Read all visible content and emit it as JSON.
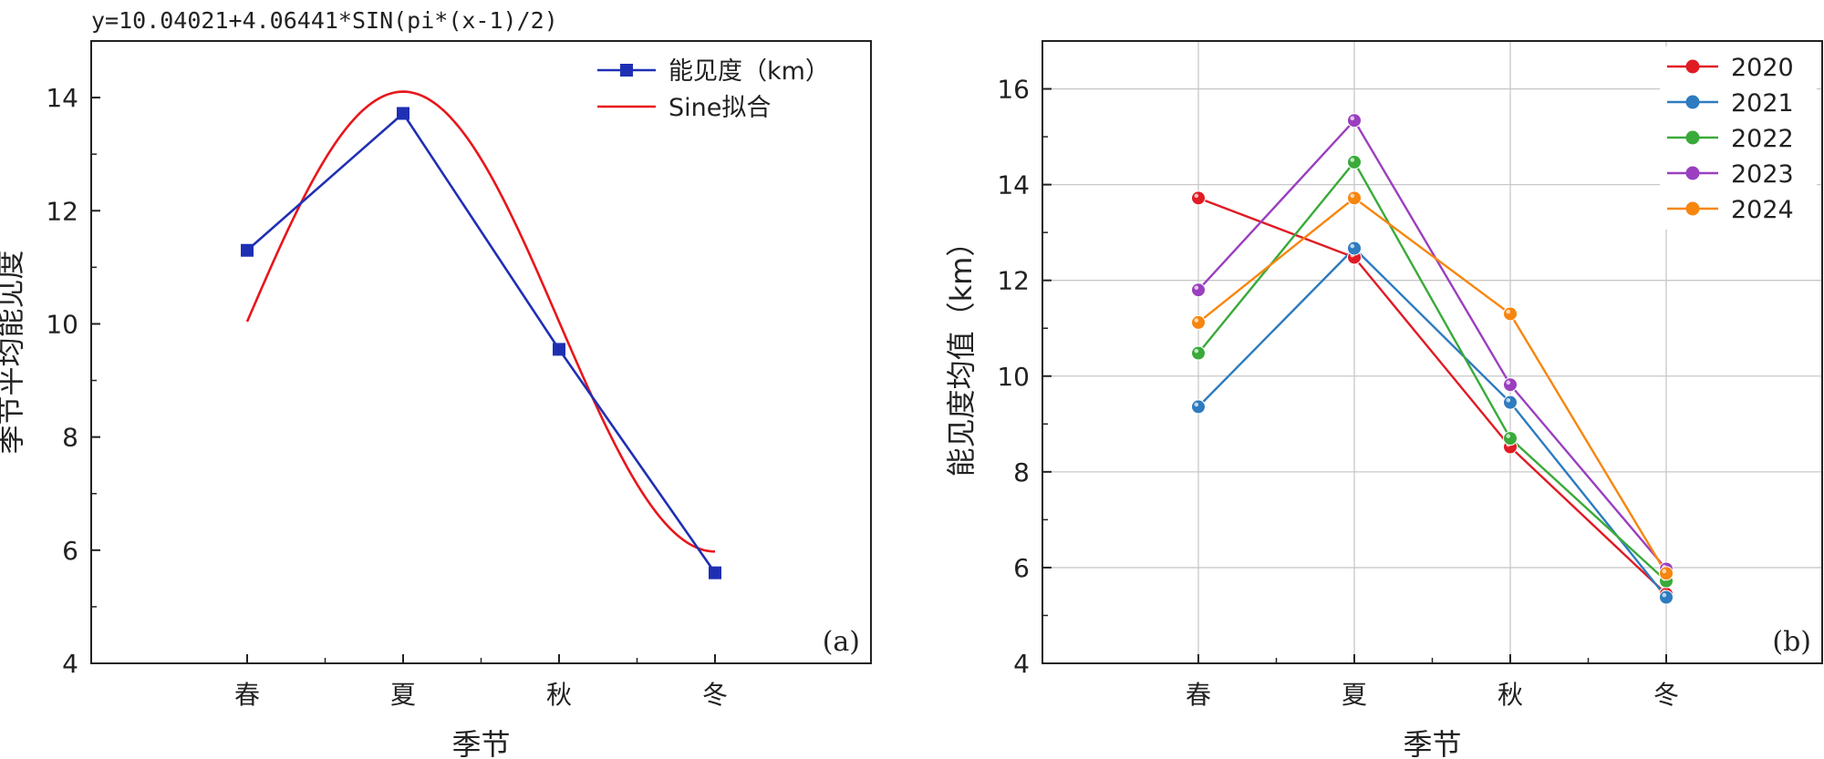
{
  "chart_data": [
    {
      "type": "line",
      "panel_label": "(a)",
      "formula": "y=10.04021+4.06441*SIN(pi*(x-1)/2)",
      "xlabel": "季节",
      "ylabel": "季节平均能见度",
      "categories": [
        "春",
        "夏",
        "秋",
        "冬"
      ],
      "ylim": [
        4,
        15
      ],
      "yticks": [
        4,
        6,
        8,
        10,
        12,
        14
      ],
      "grid": false,
      "legend_position": "top-right",
      "series": [
        {
          "name": "能见度（km）",
          "values": [
            11.3,
            13.72,
            9.55,
            5.6
          ],
          "color": "#1f2fb4",
          "marker": "square"
        }
      ],
      "fit": {
        "name": "Sine拟合",
        "a": 10.04021,
        "b": 4.06441,
        "x_range": [
          1,
          4
        ],
        "color": "#e8161b"
      }
    },
    {
      "type": "line",
      "panel_label": "(b)",
      "xlabel": "季节",
      "ylabel": "能见度均值（km）",
      "categories": [
        "春",
        "夏",
        "秋",
        "冬"
      ],
      "ylim": [
        4,
        17
      ],
      "yticks": [
        4,
        6,
        8,
        10,
        12,
        14,
        16
      ],
      "grid": true,
      "legend_position": "top-right",
      "series": [
        {
          "name": "2020",
          "values": [
            13.72,
            12.48,
            8.52,
            5.45
          ],
          "color": "#e01b24"
        },
        {
          "name": "2021",
          "values": [
            9.36,
            12.67,
            9.45,
            5.38
          ],
          "color": "#2e7bbf"
        },
        {
          "name": "2022",
          "values": [
            10.48,
            14.47,
            8.7,
            5.72
          ],
          "color": "#3aaa3a"
        },
        {
          "name": "2023",
          "values": [
            11.8,
            15.34,
            9.82,
            5.97
          ],
          "color": "#9a3fbf"
        },
        {
          "name": "2024",
          "values": [
            11.12,
            13.72,
            11.3,
            5.88
          ],
          "color": "#f7860f"
        }
      ]
    }
  ]
}
